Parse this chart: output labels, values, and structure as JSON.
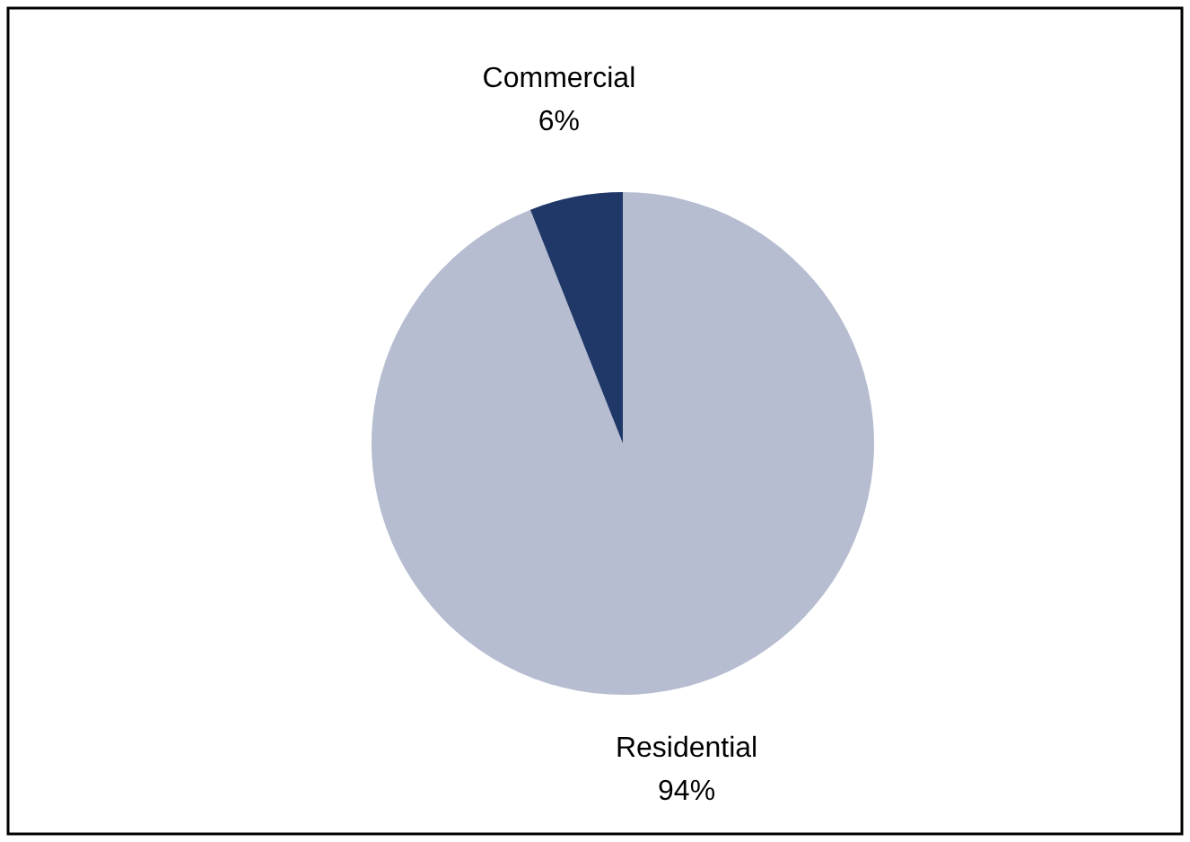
{
  "chart_data": {
    "type": "pie",
    "categories": [
      "Residential",
      "Commercial"
    ],
    "values": [
      94,
      6
    ],
    "colors": [
      "#b7bdd1",
      "#1f3868"
    ],
    "value_labels": [
      "94%",
      "6%"
    ]
  }
}
